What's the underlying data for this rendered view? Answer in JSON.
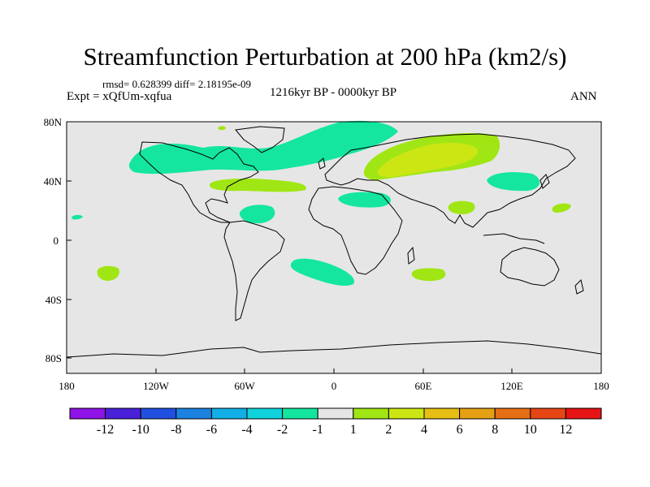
{
  "title": "Streamfunction Perturbation at 200 hPa (km2/s)",
  "stats": "rmsd= 0.628399 diff= 2.18195e-09",
  "subtitle": "1216kyr BP - 0000kyr BP",
  "experiment": "Expt = xQfUm-xqfua",
  "season": "ANN",
  "y_ticks": [
    "80N",
    "40N",
    "0",
    "40S",
    "80S"
  ],
  "x_ticks": [
    "180",
    "120W",
    "60W",
    "0",
    "60E",
    "120E",
    "180"
  ],
  "colorbar": {
    "labels": [
      "-12",
      "-10",
      "-8",
      "-6",
      "-4",
      "-2",
      "-1",
      "1",
      "2",
      "4",
      "6",
      "8",
      "10",
      "12"
    ],
    "colors": [
      "#8f12e6",
      "#4a1fd8",
      "#2050e0",
      "#1c82e0",
      "#12aee6",
      "#10d2dc",
      "#14e6a0",
      "#e6e6e6",
      "#a0e614",
      "#cce614",
      "#e6be14",
      "#e6a014",
      "#e66e14",
      "#e64614",
      "#e61414"
    ]
  },
  "colors": {
    "background": "#e6e6e6",
    "neg_1_2": "#14e6a0",
    "pos_1_2": "#a0e614",
    "pos_2_4": "#cce614",
    "coast": "#000000"
  }
}
